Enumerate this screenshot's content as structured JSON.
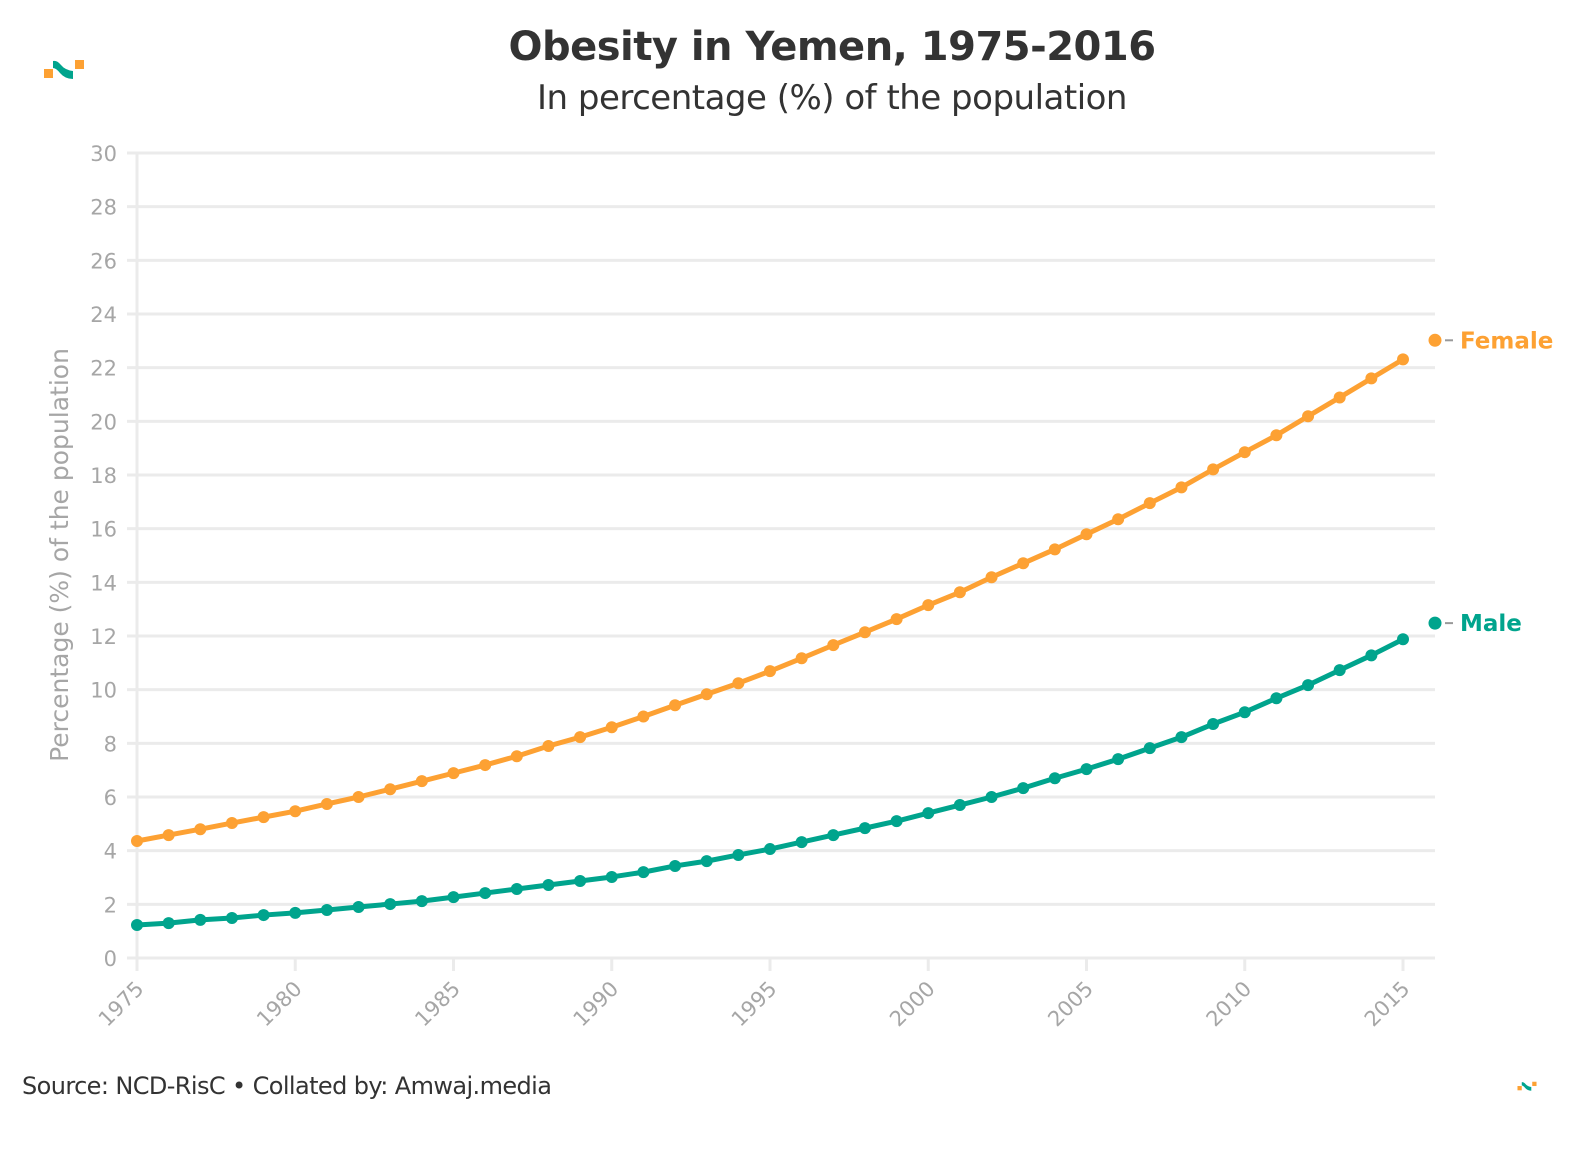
{
  "header": {
    "title": "Obesity in Yemen, 1975-2016",
    "subtitle": "In percentage (%) of the population"
  },
  "footer": {
    "source": "Source: NCD-RisC • Collated by: Amwaj.media"
  },
  "logos": {
    "top_left": "amwaj-logo-icon",
    "bottom_right": "amwaj-logo-icon"
  },
  "colors": {
    "female": "#FDA133",
    "male": "#00A48D",
    "grid": "#EBEBEB",
    "tick_text": "#A6A6A6",
    "text": "#333333"
  },
  "chart_data": {
    "type": "line",
    "title": "Obesity in Yemen, 1975-2016",
    "subtitle": "In percentage (%) of the population",
    "xlabel": "",
    "ylabel": "Percentage (%) of the population",
    "xlim": [
      1975,
      2016
    ],
    "ylim": [
      0,
      30
    ],
    "grid": true,
    "legend": "end-of-line labels (right)",
    "x_ticks": [
      "1975",
      "1980",
      "1985",
      "1990",
      "1995",
      "2000",
      "2005",
      "2010",
      "2015"
    ],
    "y_ticks": [
      "0",
      "2",
      "4",
      "6",
      "8",
      "10",
      "12",
      "14",
      "16",
      "18",
      "20",
      "22",
      "24",
      "26",
      "28",
      "30"
    ],
    "x": [
      1975,
      1976,
      1977,
      1978,
      1979,
      1980,
      1981,
      1982,
      1983,
      1984,
      1985,
      1986,
      1987,
      1988,
      1989,
      1990,
      1991,
      1992,
      1993,
      1994,
      1995,
      1996,
      1997,
      1998,
      1999,
      2000,
      2001,
      2002,
      2003,
      2004,
      2005,
      2006,
      2007,
      2008,
      2009,
      2010,
      2011,
      2012,
      2013,
      2014,
      2015,
      2016
    ],
    "series": [
      {
        "name": "Female",
        "label": "Female",
        "values": [
          4.36,
          4.58,
          4.8,
          5.03,
          5.25,
          5.47,
          5.74,
          6.0,
          6.29,
          6.59,
          6.89,
          7.19,
          7.52,
          7.9,
          8.23,
          8.6,
          9.0,
          9.42,
          9.83,
          10.24,
          10.69,
          11.17,
          11.66,
          12.14,
          12.63,
          13.15,
          13.63,
          14.19,
          14.71,
          15.23,
          15.79,
          16.35,
          16.95,
          17.54,
          18.21,
          18.85,
          19.48,
          20.19,
          20.89,
          21.6,
          22.31,
          23.02
        ]
      },
      {
        "name": "Male",
        "label": "Male",
        "values": [
          1.23,
          1.3,
          1.42,
          1.49,
          1.6,
          1.68,
          1.79,
          1.9,
          2.01,
          2.12,
          2.27,
          2.42,
          2.57,
          2.72,
          2.87,
          3.02,
          3.2,
          3.43,
          3.61,
          3.84,
          4.06,
          4.32,
          4.58,
          4.84,
          5.1,
          5.4,
          5.7,
          6.0,
          6.33,
          6.7,
          7.04,
          7.41,
          7.82,
          8.23,
          8.72,
          9.16,
          9.68,
          10.17,
          10.73,
          11.28,
          11.88,
          12.48
        ]
      }
    ]
  }
}
